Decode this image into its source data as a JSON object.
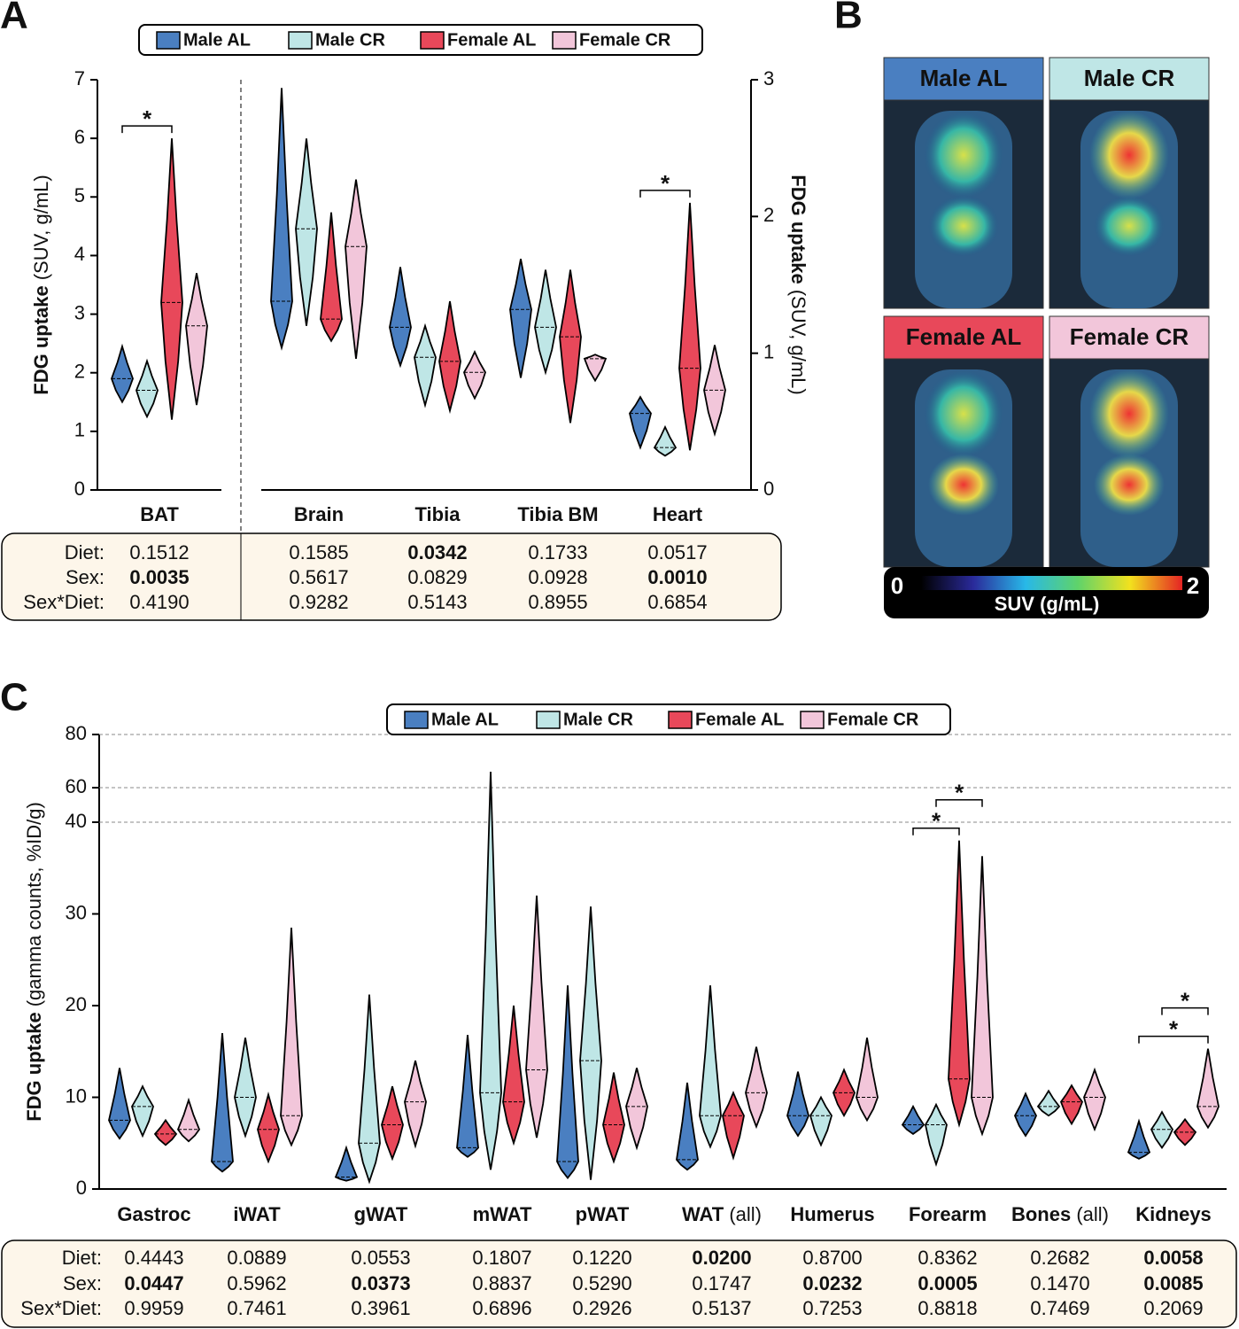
{
  "panel_labels": {
    "a": "A",
    "b": "B",
    "c": "C"
  },
  "chart_data": [
    {
      "type": "violin",
      "categories": [
        "BAT",
        "Brain",
        "Tibia",
        "Tibia BM",
        "Heart"
      ],
      "axis_of_category": [
        "y",
        "y2",
        "y2",
        "y2",
        "y2"
      ],
      "ylim": [
        0,
        7
      ],
      "yticks": [
        0,
        1,
        2,
        3,
        4,
        5,
        6,
        7
      ],
      "y2lim": [
        0,
        3
      ],
      "y2ticks": [
        0,
        1,
        2,
        3
      ],
      "ylabel": {
        "bold": "FDG uptake",
        "rest": "(SUV, g/mL)"
      },
      "y2label": {
        "bold": "FDG uptake",
        "rest": "(SUV, g/mL)"
      },
      "series": [
        {
          "name": "Male AL",
          "color": "#4a7fc1",
          "values": [
            [
              1.5,
              1.9,
              2.45
            ],
            [
              1.04,
              1.38,
              2.94
            ],
            [
              0.91,
              1.19,
              1.63
            ],
            [
              0.82,
              1.32,
              1.69
            ],
            [
              0.31,
              0.56,
              0.68
            ]
          ]
        },
        {
          "name": "Male CR",
          "color": "#bfe6e6",
          "values": [
            [
              1.25,
              1.7,
              2.2
            ],
            [
              1.2,
              1.91,
              2.57
            ],
            [
              0.62,
              0.97,
              1.2
            ],
            [
              0.86,
              1.19,
              1.61
            ],
            [
              0.25,
              0.31,
              0.46
            ]
          ]
        },
        {
          "name": "Female AL",
          "color": "#e8485a",
          "values": [
            [
              1.2,
              3.2,
              6.0
            ],
            [
              1.09,
              1.25,
              2.03
            ],
            [
              0.58,
              0.94,
              1.38
            ],
            [
              0.49,
              1.12,
              1.61
            ],
            [
              0.29,
              0.89,
              2.1
            ]
          ]
        },
        {
          "name": "Female CR",
          "color": "#f2c6da",
          "values": [
            [
              1.45,
              2.8,
              3.7
            ],
            [
              0.96,
              1.78,
              2.27
            ],
            [
              0.67,
              0.86,
              1.01
            ],
            [
              0.8,
              0.96,
              0.99
            ],
            [
              0.41,
              0.73,
              1.06
            ]
          ]
        }
      ],
      "brackets": [
        {
          "label": "*",
          "category": "BAT",
          "from": "Male AL",
          "to": "Female AL"
        },
        {
          "label": "*",
          "category": "Heart",
          "from": "Male AL",
          "to": "Female AL"
        }
      ]
    },
    {
      "type": "violin",
      "categories": [
        "Gastroc",
        "iWAT",
        "gWAT",
        "mWAT",
        "pWAT",
        "WAT (all)",
        "Humerus",
        "Forearm",
        "Bones (all)",
        "Kidneys"
      ],
      "ylim": [
        0,
        80
      ],
      "ybreak": [
        40,
        60
      ],
      "yticks": [
        0,
        10,
        20,
        30,
        40,
        60,
        80
      ],
      "ylabel": {
        "bold": "FDG uptake",
        "rest": "(gamma counts, %ID/g)"
      },
      "series": [
        {
          "name": "Male AL",
          "color": "#4a7fc1",
          "values": [
            [
              5.5,
              7.5,
              13.2
            ],
            [
              1.9,
              3,
              17
            ],
            [
              0.9,
              1.3,
              4.5
            ],
            [
              3.5,
              4.5,
              16.8
            ],
            [
              1.2,
              3,
              22.2
            ],
            [
              2.1,
              3.2,
              11.6
            ],
            [
              5.8,
              8,
              12.8
            ],
            [
              6,
              7,
              9
            ],
            [
              5.8,
              8,
              10.4
            ],
            [
              3.3,
              4,
              7.4
            ]
          ]
        },
        {
          "name": "Male CR",
          "color": "#bfe6e6",
          "values": [
            [
              5.8,
              9,
              11.2
            ],
            [
              5.8,
              10,
              16.5
            ],
            [
              0.8,
              5,
              21.2
            ],
            [
              2.1,
              10.5,
              66
            ],
            [
              1,
              14,
              30.8
            ],
            [
              4.6,
              8,
              22.2
            ],
            [
              4.8,
              8,
              10
            ],
            [
              2.7,
              7,
              9.2
            ],
            [
              8,
              9,
              10.7
            ],
            [
              4.5,
              6.5,
              8.4
            ]
          ]
        },
        {
          "name": "Female AL",
          "color": "#e8485a",
          "values": [
            [
              4.8,
              6,
              7.5
            ],
            [
              3,
              6.5,
              10.3
            ],
            [
              3.3,
              7,
              11.2
            ],
            [
              5,
              9.5,
              20
            ],
            [
              3,
              7,
              12.7
            ],
            [
              3.4,
              8,
              10.5
            ],
            [
              8,
              10.5,
              13
            ],
            [
              7,
              12,
              38
            ],
            [
              7.1,
              9.5,
              11.3
            ],
            [
              4.8,
              6.2,
              7.6
            ]
          ]
        },
        {
          "name": "Female CR",
          "color": "#f2c6da",
          "values": [
            [
              5.2,
              6.5,
              9.7
            ],
            [
              4.8,
              8,
              28.5
            ],
            [
              4.7,
              9.5,
              14
            ],
            [
              5.6,
              13,
              32
            ],
            [
              4.5,
              9,
              13.2
            ],
            [
              6.8,
              10.5,
              15.5
            ],
            [
              7.5,
              10,
              16.5
            ],
            [
              6,
              10,
              36.3
            ],
            [
              6.5,
              10,
              13
            ],
            [
              6.7,
              9,
              15.3
            ]
          ]
        }
      ],
      "brackets": [
        {
          "label": "*",
          "category": "Forearm",
          "from": "Male AL",
          "to": "Female AL"
        },
        {
          "label": "*",
          "category": "Forearm",
          "from": "Male CR",
          "to": "Female CR"
        },
        {
          "label": "*",
          "category": "Kidneys",
          "from": "Male AL",
          "to": "Female CR"
        },
        {
          "label": "*",
          "category": "Kidneys",
          "from": "Male CR",
          "to": "Female CR"
        }
      ]
    }
  ],
  "images": {
    "tiles": [
      "Male AL",
      "Male CR",
      "Female AL",
      "Female CR"
    ],
    "colorbar": {
      "min": 0,
      "max": 2,
      "label": "SUV (g/mL)"
    }
  },
  "tables": [
    {
      "rows": [
        {
          "label": "Diet:",
          "values": [
            "0.1512",
            "0.1585",
            "0.0342",
            "0.1733",
            "0.0517"
          ],
          "bold": [
            false,
            false,
            true,
            false,
            false
          ]
        },
        {
          "label": "Sex:",
          "values": [
            "0.0035",
            "0.5617",
            "0.0829",
            "0.0928",
            "0.0010"
          ],
          "bold": [
            true,
            false,
            false,
            false,
            true
          ]
        },
        {
          "label": "Sex*Diet:",
          "values": [
            "0.4190",
            "0.9282",
            "0.5143",
            "0.8955",
            "0.6854"
          ],
          "bold": [
            false,
            false,
            false,
            false,
            false
          ]
        }
      ]
    },
    {
      "rows": [
        {
          "label": "Diet:",
          "values": [
            "0.4443",
            "0.0889",
            "0.0553",
            "0.1807",
            "0.1220",
            "0.0200",
            "0.8700",
            "0.8362",
            "0.2682",
            "0.0058"
          ],
          "bold": [
            false,
            false,
            false,
            false,
            false,
            true,
            false,
            false,
            false,
            true
          ]
        },
        {
          "label": "Sex:",
          "values": [
            "0.0447",
            "0.5962",
            "0.0373",
            "0.8837",
            "0.5290",
            "0.1747",
            "0.0232",
            "0.0005",
            "0.1470",
            "0.0085"
          ],
          "bold": [
            true,
            false,
            true,
            false,
            false,
            false,
            true,
            true,
            false,
            true
          ]
        },
        {
          "label": "Sex*Diet:",
          "values": [
            "0.9959",
            "0.7461",
            "0.3961",
            "0.6896",
            "0.2926",
            "0.5137",
            "0.7253",
            "0.8818",
            "0.7469",
            "0.2069"
          ],
          "bold": [
            false,
            false,
            false,
            false,
            false,
            false,
            false,
            false,
            false,
            false
          ]
        }
      ]
    }
  ]
}
